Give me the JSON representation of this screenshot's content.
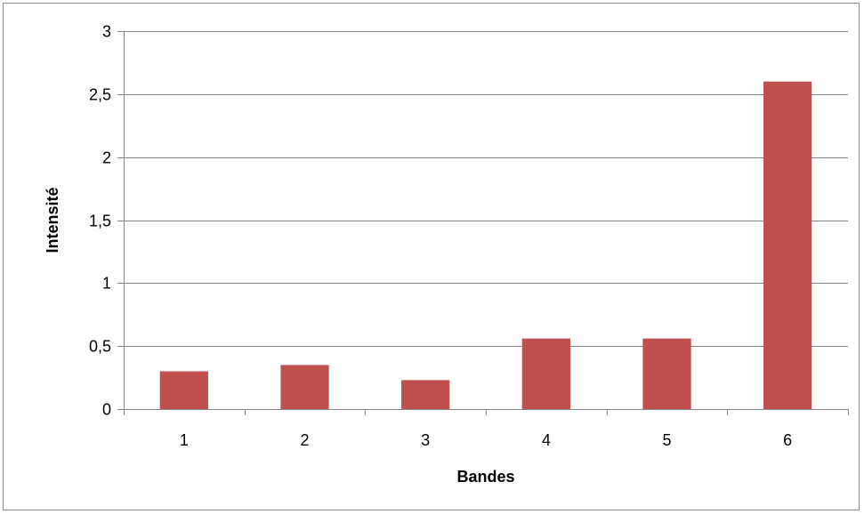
{
  "chart_data": {
    "type": "bar",
    "categories": [
      "1",
      "2",
      "3",
      "4",
      "5",
      "6"
    ],
    "values": [
      0.3,
      0.35,
      0.23,
      0.56,
      0.56,
      2.6
    ],
    "xlabel": "Bandes",
    "ylabel": "Intensité",
    "ylim": [
      0,
      3
    ],
    "yticks": [
      0,
      0.5,
      1,
      1.5,
      2,
      2.5,
      3
    ],
    "ytick_labels": [
      "0",
      "0,5",
      "1",
      "1,5",
      "2",
      "2,5",
      "3"
    ],
    "grid": "horizontal",
    "legend": "none",
    "bar_color": "#c0504d",
    "gridline_color": "#868686"
  }
}
